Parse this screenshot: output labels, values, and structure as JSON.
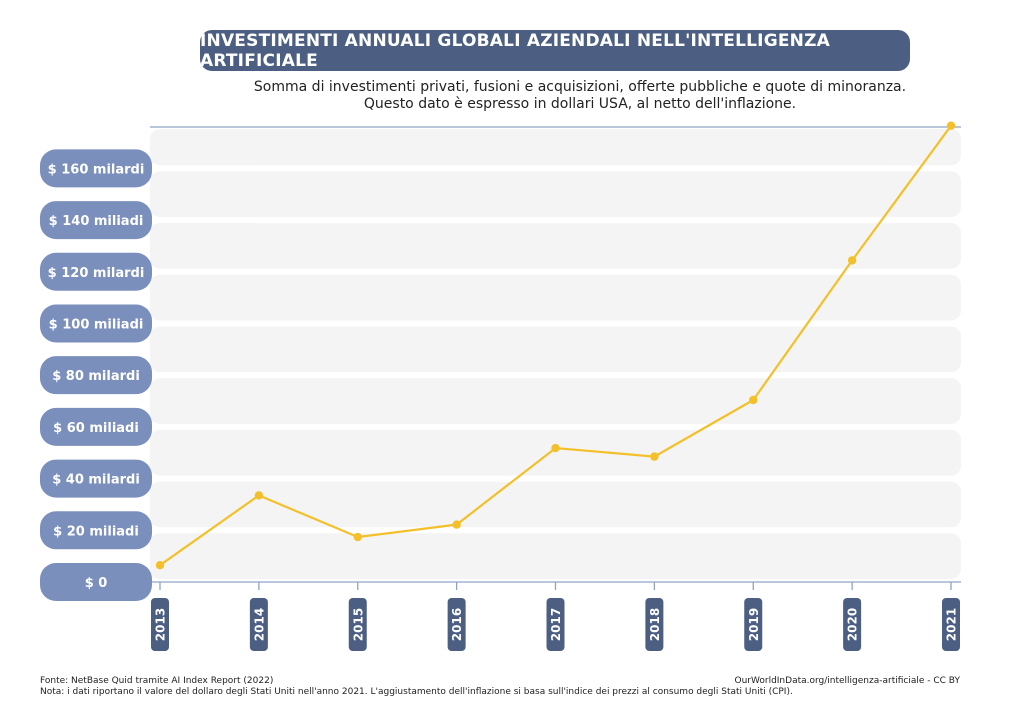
{
  "header": {
    "title": "INVESTIMENTI ANNUALI GLOBALI AZIENDALI NELL'INTELLIGENZA ARTIFICIALE",
    "subtitle_line1": "Somma di investimenti privati, fusioni e acquisizioni, offerte pubbliche e quote di minoranza.",
    "subtitle_line2": "Questo dato è espresso in dollari USA, al netto dell'inflazione."
  },
  "footer": {
    "source": "Fonte: NetBase Quid tramite AI Index Report (2022)",
    "note": "Nota: i dati riportano il valore del dollaro degli Stati Uniti nell'anno 2021. L'aggiustamento dell'inflazione si basa sull'indice dei prezzi al consumo degli Stati Uniti (CPI).",
    "credit": "OurWorldInData.org/intelligenza-artificiale - CC BY"
  },
  "colors": {
    "line": "#f3c02a",
    "label_pill": "#7b8fbd",
    "year_pill": "#4c5f82",
    "band": "#f4f4f4",
    "axis": "#8fa3c7"
  },
  "chart_data": {
    "type": "line",
    "title": "INVESTIMENTI ANNUALI GLOBALI AZIENDALI NELL'INTELLIGENZA ARTIFICIALE",
    "x": [
      "2013",
      "2014",
      "2015",
      "2016",
      "2017",
      "2018",
      "2019",
      "2020",
      "2021"
    ],
    "series": [
      {
        "values": [
          6.5,
          33.5,
          17.4,
          22.2,
          51.8,
          48.5,
          70.4,
          124.4,
          176.5
        ]
      }
    ],
    "ylim": [
      0,
      176
    ],
    "yticks": [
      0,
      20,
      40,
      60,
      80,
      100,
      120,
      140,
      160
    ],
    "ytick_labels": [
      "$ 0",
      "$ 20 miliadi",
      "$ 40 milardi",
      "$ 60 miliadi",
      "$ 80 milardi",
      "$ 100 miliadi",
      "$ 120 milardi",
      "$ 140 miliadi",
      "$ 160 milardi"
    ],
    "grid": true
  }
}
